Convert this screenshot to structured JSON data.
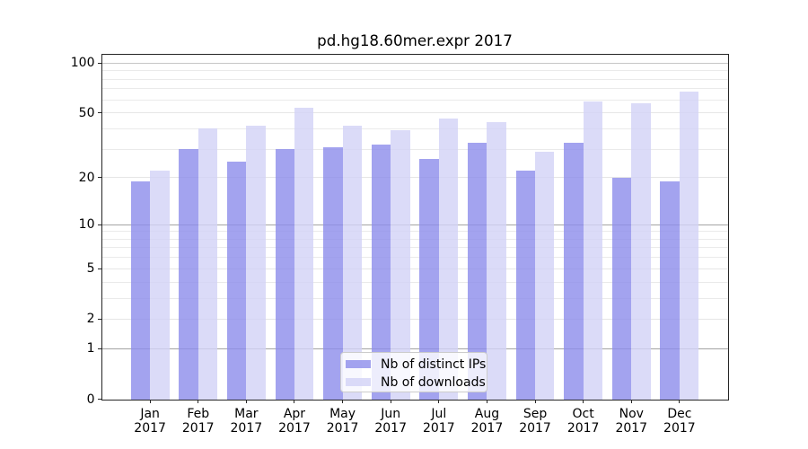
{
  "chart_data": {
    "type": "bar",
    "title": "pd.hg18.60mer.expr 2017",
    "categories": [
      "Jan 2017",
      "Feb 2017",
      "Mar 2017",
      "Apr 2017",
      "May 2017",
      "Jun 2017",
      "Jul 2017",
      "Aug 2017",
      "Sep 2017",
      "Oct 2017",
      "Nov 2017",
      "Dec 2017"
    ],
    "x_tick_labels": [
      [
        "Jan",
        "2017"
      ],
      [
        "Feb",
        "2017"
      ],
      [
        "Mar",
        "2017"
      ],
      [
        "Apr",
        "2017"
      ],
      [
        "May",
        "2017"
      ],
      [
        "Jun",
        "2017"
      ],
      [
        "Jul",
        "2017"
      ],
      [
        "Aug",
        "2017"
      ],
      [
        "Sep",
        "2017"
      ],
      [
        "Oct",
        "2017"
      ],
      [
        "Nov",
        "2017"
      ],
      [
        "Dec",
        "2017"
      ]
    ],
    "series": [
      {
        "name": "Nb of distinct IPs",
        "color": "#8c8ceb",
        "alpha": 0.8,
        "values": [
          19,
          30,
          25,
          30,
          31,
          32,
          26,
          33,
          22,
          33,
          20,
          19
        ]
      },
      {
        "name": "Nb of downloads",
        "color": "#d2d2f6",
        "alpha": 0.8,
        "values": [
          22,
          40,
          42,
          54,
          42,
          39,
          46,
          44,
          29,
          59,
          57,
          67
        ]
      }
    ],
    "xlabel": "",
    "ylabel": "",
    "yscale": "log1p",
    "ylim": [
      0,
      113
    ],
    "yticks_major": [
      0,
      1,
      2,
      5,
      10,
      20,
      50,
      100
    ],
    "yticks_minor": [
      3,
      4,
      6,
      7,
      8,
      9,
      30,
      40,
      60,
      70,
      80,
      90
    ],
    "grid": true,
    "legend_position": "lower center"
  },
  "colors": {
    "background": "#ffffff",
    "spine": "#262626",
    "grid_decade": "#a4a4a4",
    "grid_decade_top": "#c6c6c6",
    "grid_major": "#e6e6e6",
    "grid_minor": "#eaeaea",
    "text": "#000000",
    "legend_border": "#cccccc"
  }
}
